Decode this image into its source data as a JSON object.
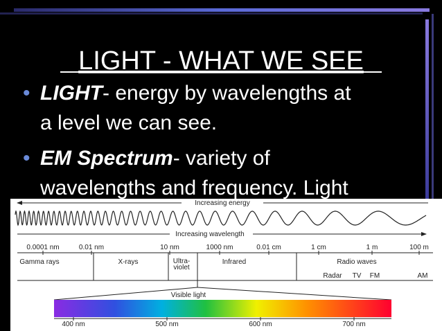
{
  "slide": {
    "title": "LIGHT - WHAT WE SEE",
    "bullets": [
      {
        "term": "LIGHT",
        "lines": [
          "- energy by wavelengths at",
          "a level we can see."
        ]
      },
      {
        "term": "EM Spectrum",
        "lines": [
          "- variety of",
          "wavelengths and frequency. Light"
        ]
      }
    ],
    "diagram": {
      "energy_label": "Increasing energy",
      "wavelength_label": "Increasing wavelength",
      "scale": [
        "0.0001 nm",
        "0.01 nm",
        "10 nm",
        "1000 nm",
        "0.01 cm",
        "1 cm",
        "1 m",
        "100 m"
      ],
      "regions": [
        "Gamma rays",
        "X-rays",
        "Ultra-",
        "violet",
        "Infrared",
        "Radio waves"
      ],
      "radio_bands": [
        "Radar",
        "TV",
        "FM",
        "AM"
      ],
      "visible_label": "Visible light",
      "visible_scale": [
        "400 nm",
        "500 nm",
        "600 nm",
        "700 nm"
      ]
    }
  }
}
